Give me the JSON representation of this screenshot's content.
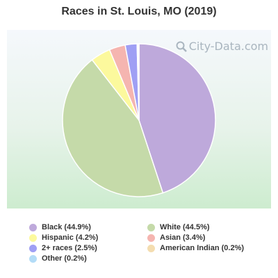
{
  "chart_data": {
    "type": "pie",
    "title": "Races in St. Louis, MO (2019)",
    "watermark": "City-Data.com",
    "legend_placement": "bottom",
    "slices": [
      {
        "label": "Black (44.9%)",
        "value": 44.9,
        "color": "#bea9db"
      },
      {
        "label": "White (44.5%)",
        "value": 44.5,
        "color": "#c5daa9"
      },
      {
        "label": "Hispanic (4.2%)",
        "value": 4.2,
        "color": "#fcf99d"
      },
      {
        "label": "Asian (3.4%)",
        "value": 3.4,
        "color": "#f5b5b0"
      },
      {
        "label": "2+ races (2.5%)",
        "value": 2.5,
        "color": "#9f9ff4"
      },
      {
        "label": "American Indian (0.2%)",
        "value": 0.2,
        "color": "#f4ddb0"
      },
      {
        "label": "Other (0.2%)",
        "value": 0.2,
        "color": "#b3dcf7"
      }
    ]
  }
}
